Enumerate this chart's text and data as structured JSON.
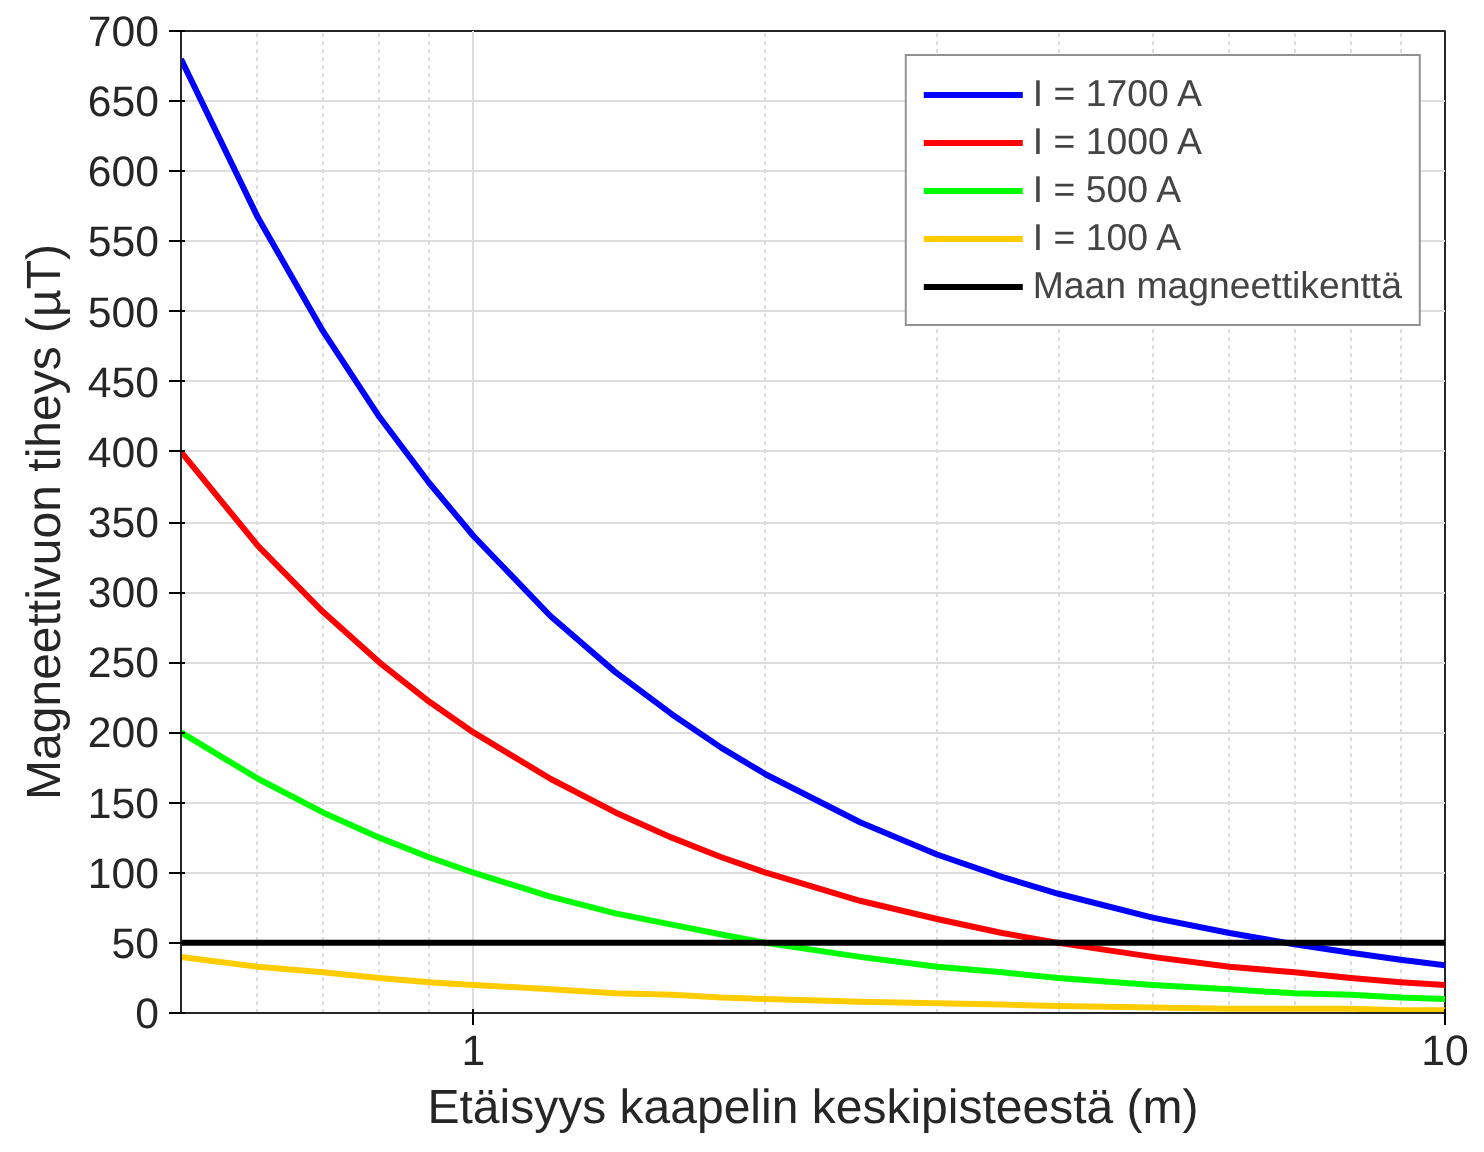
{
  "chart_data": {
    "type": "line",
    "xlabel": "Etäisyys kaapelin keskipisteestä (m)",
    "ylabel": "Magneettivuon tiheys (µT)",
    "x": [
      0.5,
      0.6,
      0.7,
      0.8,
      0.9,
      1,
      1.2,
      1.4,
      1.6,
      1.8,
      2,
      2.5,
      3,
      3.5,
      4,
      5,
      6,
      7,
      8,
      9,
      10
    ],
    "series": [
      {
        "name": "I = 1700 A",
        "color": "#0000ff",
        "values": [
          680,
          567,
          486,
          425,
          378,
          340,
          283,
          243,
          213,
          189,
          170,
          136,
          113,
          97,
          85,
          68,
          57,
          49,
          43,
          38,
          34
        ]
      },
      {
        "name": "I = 1000 A",
        "color": "#ff0000",
        "values": [
          400,
          333,
          286,
          250,
          222,
          200,
          167,
          143,
          125,
          111,
          100,
          80,
          67,
          57,
          50,
          40,
          33,
          29,
          25,
          22,
          20
        ]
      },
      {
        "name": "I = 500 A",
        "color": "#00ff00",
        "values": [
          200,
          167,
          143,
          125,
          111,
          100,
          83,
          71,
          63,
          56,
          50,
          40,
          33,
          29,
          25,
          20,
          17,
          14,
          13,
          11,
          10
        ]
      },
      {
        "name": "I = 100 A",
        "color": "#ffcc00",
        "values": [
          40,
          33,
          29,
          25,
          22,
          20,
          17,
          14,
          13,
          11,
          10,
          8,
          7,
          6,
          5,
          4,
          3,
          3,
          3,
          2,
          2
        ]
      }
    ],
    "ref_lines": [
      {
        "axis": "y",
        "value": 50,
        "label": "Maan magneettikenttä",
        "color": "#000000"
      }
    ],
    "log": "x",
    "xlim": [
      0.5,
      10
    ],
    "xticks": [
      1,
      10
    ],
    "ylim": [
      0,
      700
    ],
    "yticks": [
      0,
      50,
      100,
      150,
      200,
      250,
      300,
      350,
      400,
      450,
      500,
      550,
      600,
      650,
      700
    ],
    "grid": true,
    "legend": "top right",
    "line_style": "solid",
    "marker": "none"
  }
}
